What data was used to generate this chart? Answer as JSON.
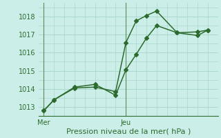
{
  "xlabel": "Pression niveau de la mer( hPa )",
  "bg_color": "#cceee8",
  "grid_color": "#aad8cc",
  "line_color": "#2d6a2d",
  "marker_color": "#2d6a2d",
  "ylim": [
    1012.5,
    1018.75
  ],
  "xtick_labels": [
    "Mer",
    "Jeu"
  ],
  "xtick_positions": [
    0,
    8
  ],
  "ytick_positions": [
    1013,
    1014,
    1015,
    1016,
    1017,
    1018
  ],
  "series1_x": [
    0,
    1,
    3,
    5,
    7,
    8,
    9,
    10,
    11,
    13,
    15,
    16
  ],
  "series1_y": [
    1012.8,
    1013.4,
    1014.05,
    1014.1,
    1013.85,
    1016.55,
    1017.75,
    1018.05,
    1018.3,
    1017.1,
    1017.15,
    1017.25
  ],
  "series2_x": [
    0,
    1,
    3,
    5,
    7,
    8,
    9,
    10,
    11,
    13,
    15,
    16
  ],
  "series2_y": [
    1012.8,
    1013.4,
    1014.1,
    1014.25,
    1013.65,
    1015.05,
    1015.9,
    1016.8,
    1017.5,
    1017.1,
    1016.95,
    1017.25
  ],
  "vline_x": [
    0,
    8
  ],
  "xlim": [
    -0.5,
    17
  ],
  "marker_size": 3.0,
  "line_width": 1.1,
  "xlabel_fontsize": 8,
  "tick_fontsize": 7
}
